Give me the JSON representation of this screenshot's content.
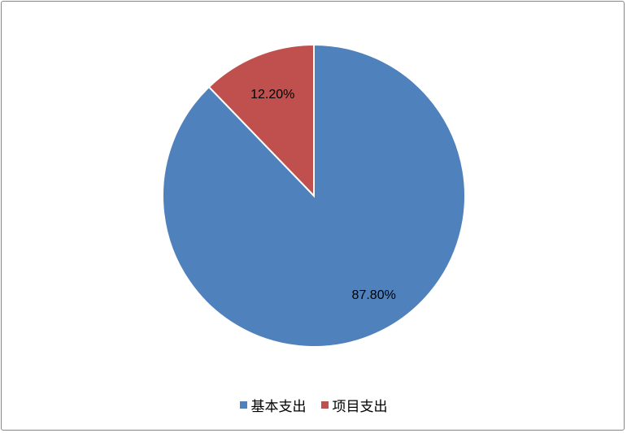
{
  "chart_data": {
    "type": "pie",
    "categories": [
      "基本支出",
      "项目支出"
    ],
    "values": [
      87.8,
      12.2
    ],
    "data_labels": [
      "87.80%",
      "12.20%"
    ],
    "colors": [
      "#4F81BD",
      "#C0504D"
    ],
    "legend_position": "bottom",
    "start_angle": "12 o'clock, clockwise"
  }
}
